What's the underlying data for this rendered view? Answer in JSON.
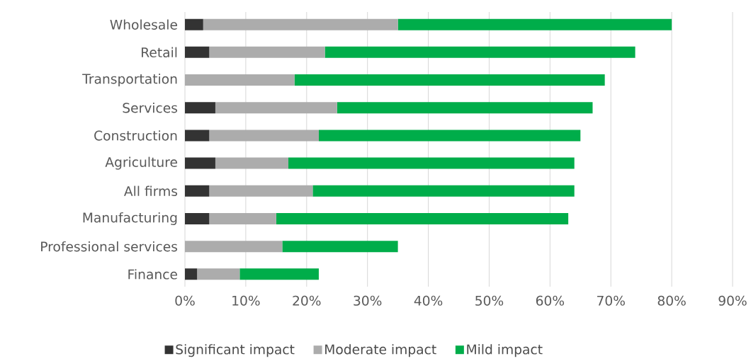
{
  "chart_data": {
    "type": "bar",
    "orientation": "horizontal",
    "stacked": true,
    "categories": [
      "Wholesale",
      "Retail",
      "Transportation",
      "Services",
      "Construction",
      "Agriculture",
      "All firms",
      "Manufacturing",
      "Professional services",
      "Finance"
    ],
    "series": [
      {
        "name": "Significant impact",
        "color": "#333333",
        "values": [
          3,
          4,
          0,
          5,
          4,
          5,
          4,
          4,
          0,
          2
        ]
      },
      {
        "name": "Moderate impact",
        "color": "#acacac",
        "values": [
          32,
          19,
          18,
          20,
          18,
          12,
          17,
          11,
          16,
          7
        ]
      },
      {
        "name": "Mild impact",
        "color": "#00ad4a",
        "values": [
          45,
          51,
          51,
          42,
          43,
          47,
          43,
          48,
          19,
          13
        ]
      }
    ],
    "xlim": [
      0,
      90
    ],
    "xticks": [
      {
        "value": 0,
        "label": "0%"
      },
      {
        "value": 10,
        "label": "10%"
      },
      {
        "value": 20,
        "label": "20%"
      },
      {
        "value": 30,
        "label": "30%"
      },
      {
        "value": 40,
        "label": "40%"
      },
      {
        "value": 50,
        "label": "50%"
      },
      {
        "value": 60,
        "label": "60%"
      },
      {
        "value": 70,
        "label": "70%"
      },
      {
        "value": 80,
        "label": "80%"
      },
      {
        "value": 90,
        "label": "90%"
      }
    ],
    "grid": "x",
    "legend": "bottom"
  }
}
